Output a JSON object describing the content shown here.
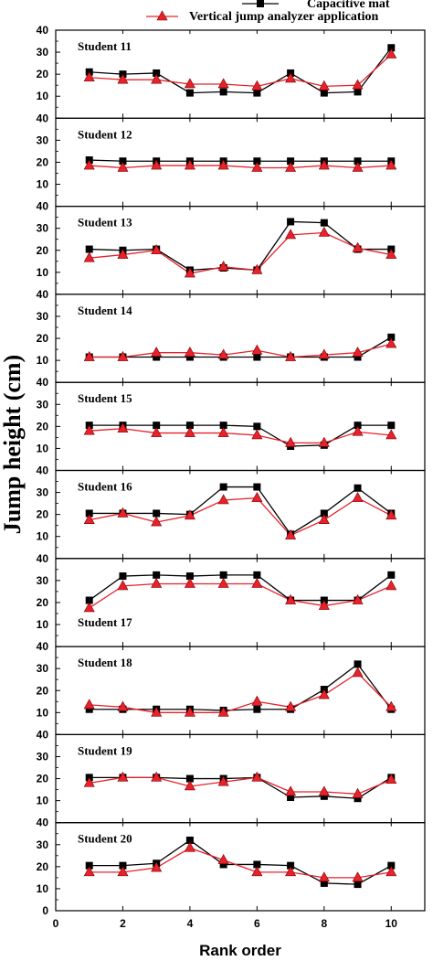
{
  "chart_data": {
    "type": "line",
    "xlabel": "Rank order",
    "ylabel": "Jump height (cm)",
    "xlim": [
      0,
      11
    ],
    "xticks": [
      "0",
      "2",
      "4",
      "6",
      "8",
      "10"
    ],
    "ylim": [
      0,
      40
    ],
    "yticks": [
      "0",
      "10",
      "20",
      "30",
      "40"
    ],
    "grid": false,
    "legend_position": "top-right",
    "series_legend": [
      {
        "name": "Capacitive mat",
        "marker": "square",
        "color": "#000000"
      },
      {
        "name": "Vertical jump analyzer application",
        "marker": "triangle",
        "color": "#e8212b"
      }
    ],
    "x": [
      1,
      2,
      3,
      4,
      5,
      6,
      7,
      8,
      9,
      10
    ],
    "panels": [
      {
        "label": "Student 11",
        "mat": [
          21,
          20,
          20.5,
          11.5,
          12,
          11.5,
          20.5,
          11.5,
          12,
          32
        ],
        "app": [
          18.5,
          17.5,
          17.5,
          15.5,
          15.5,
          14.5,
          18,
          14.5,
          15,
          29
        ]
      },
      {
        "label": "Student 12",
        "mat": [
          21,
          20.5,
          20.5,
          20.5,
          20.5,
          20.5,
          20.5,
          20.5,
          20.5,
          20.5
        ],
        "app": [
          18.5,
          17.5,
          18.5,
          18.5,
          18.5,
          17.5,
          17.5,
          18.5,
          17.5,
          18.5
        ]
      },
      {
        "label": "Student 13",
        "mat": [
          20.5,
          20,
          20.5,
          11,
          12,
          11,
          33,
          32.5,
          20.5,
          20.5
        ],
        "app": [
          16.5,
          18,
          20,
          9.5,
          12.5,
          11,
          27,
          28,
          21,
          18
        ]
      },
      {
        "label": "Student 14",
        "mat": [
          11.5,
          11.5,
          11.5,
          11.5,
          11.5,
          11.5,
          11.5,
          11.5,
          11.5,
          20.5
        ],
        "app": [
          11.5,
          11.5,
          13.5,
          13.5,
          12.5,
          14.5,
          11.5,
          12.5,
          13.5,
          17.5
        ]
      },
      {
        "label": "Student 15",
        "mat": [
          20.5,
          20.5,
          20.5,
          20.5,
          20.5,
          20,
          11,
          11.5,
          20.5,
          20.5
        ],
        "app": [
          18,
          19,
          17,
          17,
          17,
          16,
          12.5,
          12.5,
          17.5,
          16
        ]
      },
      {
        "label": "Student 16",
        "mat": [
          20.5,
          20.5,
          20.5,
          20,
          32.5,
          32.5,
          11,
          20.5,
          32,
          20.5
        ],
        "app": [
          17.5,
          20.5,
          16.5,
          19.5,
          26.5,
          27.5,
          10.5,
          17.5,
          27.5,
          19.5
        ]
      },
      {
        "label": "Student 17",
        "mat": [
          21,
          32,
          32.5,
          32,
          32.5,
          32.5,
          21,
          21,
          21,
          32.5
        ],
        "app": [
          17.5,
          27.5,
          28.5,
          28.5,
          28.5,
          28.5,
          21,
          18.5,
          21,
          27.5
        ]
      },
      {
        "label": "Student 18",
        "mat": [
          11.5,
          11.5,
          11.5,
          11.5,
          11,
          11.5,
          11.5,
          20.5,
          32,
          11.5
        ],
        "app": [
          13.5,
          12.5,
          10,
          10,
          10,
          15,
          12.5,
          18,
          28,
          12.5
        ]
      },
      {
        "label": "Student 19",
        "mat": [
          20.5,
          20.5,
          20.5,
          20,
          20,
          20.5,
          11.5,
          12,
          11,
          20.5
        ],
        "app": [
          18,
          20.5,
          20.5,
          16.5,
          18.5,
          20.5,
          14,
          14,
          13,
          19.5
        ]
      },
      {
        "label": "Student 20",
        "mat": [
          20.5,
          20.5,
          21.5,
          32,
          21,
          21,
          20.5,
          12.5,
          12,
          20.5
        ],
        "app": [
          17.5,
          17.5,
          19.5,
          28.5,
          23,
          17.5,
          17.5,
          15,
          15,
          17.5
        ]
      }
    ]
  }
}
